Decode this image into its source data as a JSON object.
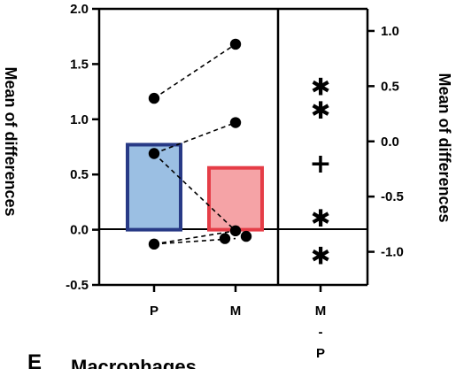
{
  "chart_data": {
    "type": "bar",
    "panel_letter": "E",
    "panel_title": "Macrophages",
    "categories": [
      "P",
      "M"
    ],
    "bars": [
      {
        "category": "P",
        "value": 0.77,
        "fill": "#9bbfe3",
        "stroke": "#283a86"
      },
      {
        "category": "M",
        "value": 0.56,
        "fill": "#f5a3a6",
        "stroke": "#e53d47"
      }
    ],
    "paired_points": [
      {
        "P": 1.19,
        "M": 1.68
      },
      {
        "P": 0.69,
        "M": 0.97
      },
      {
        "P": 0.69,
        "M": -0.01
      },
      {
        "P": -0.13,
        "M": -0.01
      },
      {
        "P": -0.13,
        "M": -0.08
      }
    ],
    "dot_positions": [
      {
        "category": "P",
        "y": 1.19
      },
      {
        "category": "P",
        "y": 0.69
      },
      {
        "category": "P",
        "y": -0.13
      },
      {
        "category": "M",
        "y": 1.68
      },
      {
        "category": "M",
        "y": 0.97
      },
      {
        "category": "M",
        "y": -0.01
      },
      {
        "category": "M",
        "y": -0.08
      },
      {
        "category": "M",
        "y": -0.06
      }
    ],
    "left_axis": {
      "label": "Mean of differences",
      "ylim": [
        -0.5,
        2.0
      ],
      "ticks": [
        "2.0",
        "1.5",
        "1.0",
        "0.5",
        "0.0",
        "-0.5"
      ]
    },
    "difference_category": [
      "M",
      "-",
      "P"
    ],
    "right_axis": {
      "label": "Mean of differences",
      "ylim": [
        -1.3,
        1.2
      ],
      "ticks": [
        "1.0",
        "0.5",
        "0.0",
        "-0.5",
        "-1.0"
      ]
    },
    "differences": [
      {
        "symbol": "✱",
        "value": 0.49
      },
      {
        "symbol": "✱",
        "value": 0.28
      },
      {
        "symbol": "+",
        "value": -0.21
      },
      {
        "symbol": "✱",
        "value": -0.7
      },
      {
        "symbol": "✱",
        "value": -1.04
      }
    ],
    "grid": false
  }
}
